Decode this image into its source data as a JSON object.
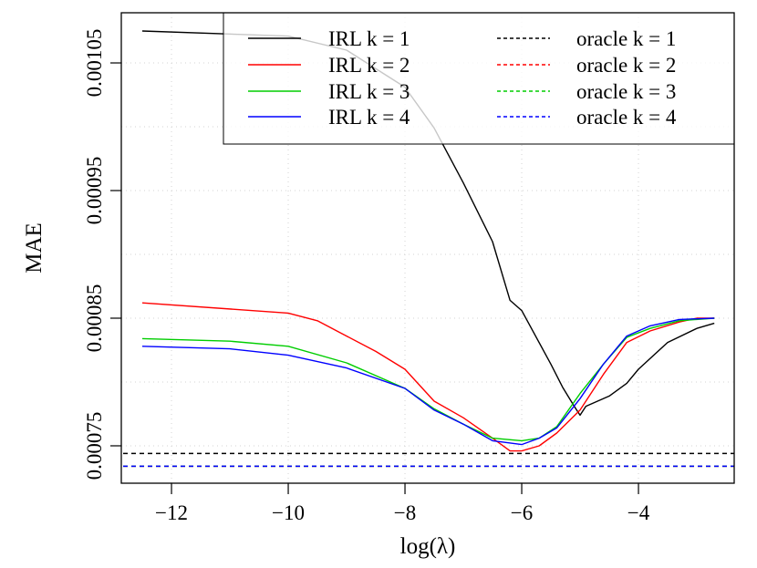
{
  "chart_data": {
    "type": "line",
    "title": "",
    "xlabel": "log(λ)",
    "ylabel": "MAE",
    "xlim": [
      -12.86,
      -2.36
    ],
    "ylim": [
      0.0007207,
      0.0010893
    ],
    "xticks": [
      -12,
      -10,
      -8,
      -6,
      -4
    ],
    "xtick_labels": [
      "−12",
      "−10",
      "−8",
      "−6",
      "−4"
    ],
    "yticks": [
      0.00075,
      0.00085,
      0.00095,
      0.00105
    ],
    "ytick_labels": [
      "0.00075",
      "0.00085",
      "0.00095",
      "0.00105"
    ],
    "grid": true,
    "grid_style": "dotted",
    "legend_placement": "top-right",
    "series": [
      {
        "name": "IRL k = 1",
        "color": "#000000",
        "style": "solid",
        "x": [
          -12.5,
          -10,
          -9,
          -8,
          -7.5,
          -7,
          -6.5,
          -6.2,
          -6,
          -5.5,
          -5.3,
          -5.1,
          -5.0,
          -4.9,
          -4.5,
          -4.2,
          -4,
          -3.5,
          -3.0,
          -2.7
        ],
        "y": [
          0.001075,
          0.001071,
          0.00106,
          0.001031,
          0.000999,
          0.000956,
          0.00091,
          0.000864,
          0.000856,
          0.000814,
          0.000796,
          0.000781,
          0.000774,
          0.000781,
          0.000789,
          0.000799,
          0.00081,
          0.000831,
          0.000842,
          0.000846
        ]
      },
      {
        "name": "IRL k = 2",
        "color": "#ff0000",
        "style": "solid",
        "x": [
          -12.5,
          -10,
          -9.5,
          -9,
          -8.5,
          -8,
          -7.5,
          -7,
          -6.5,
          -6.2,
          -6,
          -5.7,
          -5.4,
          -5,
          -4.6,
          -4.2,
          -3.8,
          -3.3,
          -3.0,
          -2.7
        ],
        "y": [
          0.000862,
          0.000854,
          0.000848,
          0.000836,
          0.000824,
          0.00081,
          0.000785,
          0.000772,
          0.000756,
          0.000746,
          0.000746,
          0.00075,
          0.00076,
          0.000778,
          0.000806,
          0.000831,
          0.00084,
          0.000847,
          0.00085,
          0.00085
        ]
      },
      {
        "name": "IRL k = 3",
        "color": "#00cd00",
        "style": "solid",
        "x": [
          -12.5,
          -11,
          -10,
          -9,
          -8,
          -7.5,
          -7,
          -6.5,
          -6,
          -5.7,
          -5.4,
          -5,
          -4.6,
          -4.2,
          -3.8,
          -3.3,
          -2.7
        ],
        "y": [
          0.000834,
          0.000832,
          0.000828,
          0.000815,
          0.000795,
          0.000779,
          0.000767,
          0.000756,
          0.000754,
          0.000756,
          0.000765,
          0.000791,
          0.000814,
          0.000835,
          0.000842,
          0.000848,
          0.00085
        ]
      },
      {
        "name": "IRL k = 4",
        "color": "#0000ff",
        "style": "solid",
        "x": [
          -12.5,
          -11,
          -10,
          -9,
          -8,
          -7.5,
          -7,
          -6.5,
          -6,
          -5.7,
          -5.4,
          -5,
          -4.6,
          -4.2,
          -3.8,
          -3.3,
          -2.7
        ],
        "y": [
          0.000828,
          0.000826,
          0.000821,
          0.000811,
          0.000795,
          0.000778,
          0.000767,
          0.000754,
          0.000751,
          0.000756,
          0.000764,
          0.000787,
          0.000814,
          0.000836,
          0.000844,
          0.000849,
          0.00085
        ]
      },
      {
        "name": "oracle k = 1",
        "color": "#000000",
        "style": "dashed",
        "hline": 0.000744
      },
      {
        "name": "oracle k = 2",
        "color": "#ff0000",
        "style": "dashed",
        "hline": 0.000734
      },
      {
        "name": "oracle k = 3",
        "color": "#00cd00",
        "style": "dashed",
        "hline": 0.000734
      },
      {
        "name": "oracle k = 4",
        "color": "#0000ff",
        "style": "dashed",
        "hline": 0.000734
      }
    ]
  }
}
